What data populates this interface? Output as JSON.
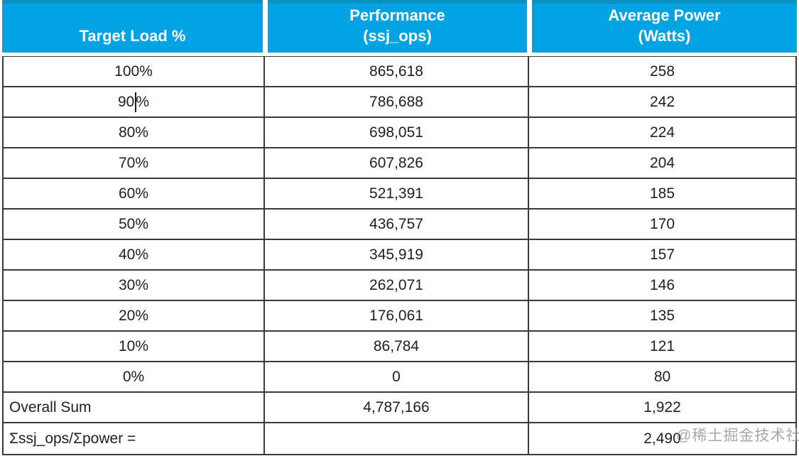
{
  "header": {
    "cells": [
      {
        "lines": [
          "Target Load %"
        ]
      },
      {
        "lines": [
          "Performance",
          "(ssj_ops)"
        ]
      },
      {
        "lines": [
          "Average Power",
          "(Watts)"
        ]
      }
    ]
  },
  "table": {
    "rows": [
      {
        "load": "100%",
        "ops": "865,618",
        "watts": "258"
      },
      {
        "load": "90%",
        "ops": "786,688",
        "watts": "242"
      },
      {
        "load": "80%",
        "ops": "698,051",
        "watts": "224"
      },
      {
        "load": "70%",
        "ops": "607,826",
        "watts": "204"
      },
      {
        "load": "60%",
        "ops": "521,391",
        "watts": "185"
      },
      {
        "load": "50%",
        "ops": "436,757",
        "watts": "170"
      },
      {
        "load": "40%",
        "ops": "345,919",
        "watts": "157"
      },
      {
        "load": "30%",
        "ops": "262,071",
        "watts": "146"
      },
      {
        "load": "20%",
        "ops": "176,061",
        "watts": "135"
      },
      {
        "load": "10%",
        "ops": "86,784",
        "watts": "121"
      },
      {
        "load": "0%",
        "ops": "0",
        "watts": "80"
      }
    ],
    "summary_rows": [
      {
        "label": "Overall Sum",
        "ops": "4,787,166",
        "watts": "1,922"
      },
      {
        "label": "Σssj_ops/Σpower =",
        "ops": "",
        "watts": "2,490"
      }
    ]
  },
  "caret": {
    "row": 1,
    "before": "90",
    "after": "%"
  },
  "watermark": "@稀土掘金技术社区",
  "colors": {
    "header_bg": "#01a3e3",
    "header_top_strip": "#0c92c2",
    "header_text": "#ffffff",
    "border": "#3a3a3a",
    "body_text": "#1f1f1f",
    "watermark": "#999999"
  },
  "chart_data": {
    "type": "table",
    "title": "",
    "columns": [
      "Target Load %",
      "Performance (ssj_ops)",
      "Average Power (Watts)"
    ],
    "rows": [
      [
        "100%",
        865618,
        258
      ],
      [
        "90%",
        786688,
        242
      ],
      [
        "80%",
        698051,
        224
      ],
      [
        "70%",
        607826,
        204
      ],
      [
        "60%",
        521391,
        185
      ],
      [
        "50%",
        436757,
        170
      ],
      [
        "40%",
        345919,
        157
      ],
      [
        "30%",
        262071,
        146
      ],
      [
        "20%",
        176061,
        135
      ],
      [
        "10%",
        86784,
        121
      ],
      [
        "0%",
        0,
        80
      ],
      [
        "Overall Sum",
        4787166,
        1922
      ],
      [
        "Σssj_ops/Σpower =",
        null,
        2490
      ]
    ]
  }
}
